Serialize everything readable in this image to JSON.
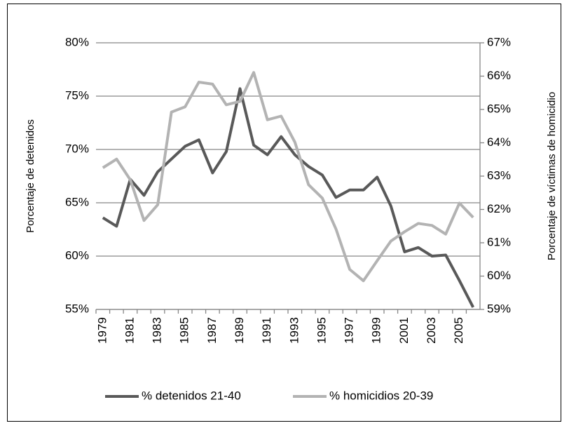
{
  "chart_data": {
    "type": "line",
    "y_label": "Porcentaje de detenidos",
    "y2_label": "Porcentaje de víctimas de homicidio",
    "x": [
      1979,
      1980,
      1981,
      1982,
      1983,
      1984,
      1985,
      1986,
      1987,
      1988,
      1989,
      1990,
      1991,
      1992,
      1993,
      1994,
      1995,
      1996,
      1997,
      1998,
      1999,
      2000,
      2001,
      2002,
      2003,
      2004,
      2005,
      2006
    ],
    "xlim": [
      1978.5,
      2006.5
    ],
    "xticks": [
      1979,
      1981,
      1983,
      1985,
      1987,
      1989,
      1991,
      1993,
      1995,
      1997,
      1999,
      2001,
      2003,
      2005
    ],
    "ylim": [
      55,
      80
    ],
    "yticks": [
      {
        "value": 55,
        "label": "55%"
      },
      {
        "value": 60,
        "label": "60%"
      },
      {
        "value": 65,
        "label": "65%"
      },
      {
        "value": 70,
        "label": "70%"
      },
      {
        "value": 75,
        "label": "75%"
      },
      {
        "value": 80,
        "label": "80%"
      }
    ],
    "y2lim": [
      59,
      67
    ],
    "y2ticks": [
      {
        "value": 59,
        "label": "59%"
      },
      {
        "value": 60,
        "label": "60%"
      },
      {
        "value": 61,
        "label": "61%"
      },
      {
        "value": 62,
        "label": "62%"
      },
      {
        "value": 63,
        "label": "63%"
      },
      {
        "value": 64,
        "label": "64%"
      },
      {
        "value": 65,
        "label": "65%"
      },
      {
        "value": 66,
        "label": "66%"
      },
      {
        "value": 67,
        "label": "67%"
      }
    ],
    "grid": true,
    "legend": "bottom",
    "series": [
      {
        "name": "% detenidos 21-40",
        "color": "#595959",
        "values": [
          63.6,
          62.8,
          67.2,
          65.7,
          67.9,
          69.1,
          70.3,
          70.9,
          67.8,
          69.8,
          75.7,
          70.4,
          69.5,
          71.2,
          69.5,
          68.4,
          67.6,
          65.5,
          66.2,
          66.2,
          67.4,
          64.7,
          60.4,
          60.8,
          60.0,
          60.1,
          57.7,
          55.2
        ]
      },
      {
        "name": "% homicidios 20-39",
        "color": "#b3b3b3",
        "axis": "y2",
        "values": [
          63.25,
          63.51,
          62.89,
          61.67,
          62.14,
          64.92,
          65.08,
          65.82,
          65.76,
          65.14,
          65.24,
          66.11,
          64.69,
          64.8,
          64.02,
          62.74,
          62.34,
          61.41,
          60.2,
          59.86,
          60.46,
          61.05,
          61.33,
          61.58,
          61.52,
          61.26,
          62.19,
          61.76
        ]
      }
    ]
  }
}
